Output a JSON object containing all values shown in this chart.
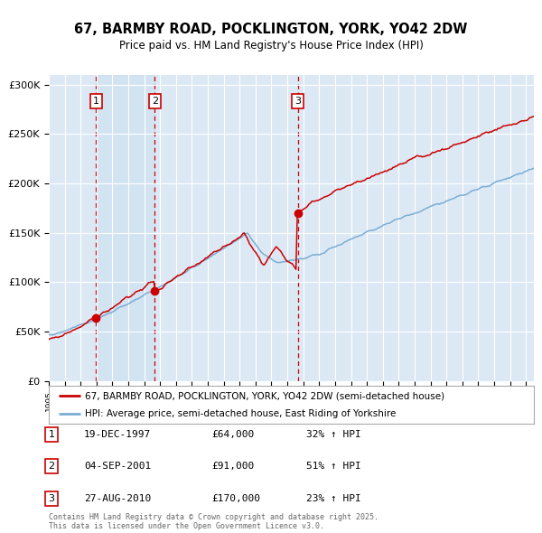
{
  "title": "67, BARMBY ROAD, POCKLINGTON, YORK, YO42 2DW",
  "subtitle": "Price paid vs. HM Land Registry's House Price Index (HPI)",
  "bg_color": "#dce9f5",
  "red_line_color": "#cc0000",
  "blue_line_color": "#7aaed4",
  "dashed_line_color": "#cc0000",
  "grid_color": "#ffffff",
  "purchase_dates": [
    1997.97,
    2001.67,
    2010.65
  ],
  "purchase_prices": [
    64000,
    91000,
    170000
  ],
  "purchase_labels": [
    "1",
    "2",
    "3"
  ],
  "legend_line1": "67, BARMBY ROAD, POCKLINGTON, YORK, YO42 2DW (semi-detached house)",
  "legend_line2": "HPI: Average price, semi-detached house, East Riding of Yorkshire",
  "table": [
    {
      "num": "1",
      "date": "19-DEC-1997",
      "price": "£64,000",
      "pct": "32% ↑ HPI"
    },
    {
      "num": "2",
      "date": "04-SEP-2001",
      "price": "£91,000",
      "pct": "51% ↑ HPI"
    },
    {
      "num": "3",
      "date": "27-AUG-2010",
      "price": "£170,000",
      "pct": "23% ↑ HPI"
    }
  ],
  "footer": "Contains HM Land Registry data © Crown copyright and database right 2025.\nThis data is licensed under the Open Government Licence v3.0.",
  "ylim": [
    0,
    310000
  ],
  "xlim_start": 1995.0,
  "xlim_end": 2025.5,
  "years_start": 1995.0,
  "years_end": 2025.5
}
